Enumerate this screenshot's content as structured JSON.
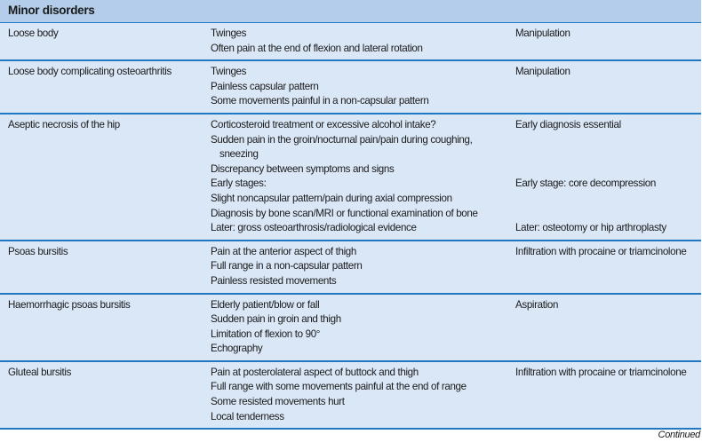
{
  "header": {
    "title": "Minor disorders"
  },
  "rows": [
    {
      "condition": "Loose body",
      "findings": [
        "Twinges",
        "Often pain at the end of flexion and lateral rotation"
      ],
      "treatment": [
        "Manipulation",
        ""
      ]
    },
    {
      "condition": "Loose body complicating osteoarthritis",
      "findings": [
        "Twinges",
        "Painless capsular pattern",
        "Some movements painful in a non-capsular pattern"
      ],
      "treatment": [
        "Manipulation",
        "",
        ""
      ]
    },
    {
      "condition": "Aseptic necrosis of the hip",
      "findings": [
        "Corticosteroid treatment or excessive alcohol intake?",
        "Sudden pain in the groin/nocturnal pain/pain during coughing,",
        "sneezing",
        "Discrepancy between symptoms and signs",
        "Early stages:",
        "Slight noncapsular pattern/pain during axial compression",
        "Diagnosis by bone scan/MRI or functional examination of bone",
        "Later: gross osteoarthrosis/radiological evidence"
      ],
      "treatment": [
        "Early diagnosis essential",
        "",
        "",
        "",
        "Early stage: core decompression",
        "",
        "",
        "Later: osteotomy or hip arthroplasty"
      ]
    },
    {
      "condition": "Psoas bursitis",
      "findings": [
        "Pain at the anterior aspect of thigh",
        "Full range in a non-capsular pattern",
        "Painless resisted movements"
      ],
      "treatment": [
        "Infiltration with procaine or triamcinolone",
        "",
        ""
      ]
    },
    {
      "condition": "Haemorrhagic psoas bursitis",
      "findings": [
        "Elderly patient/blow or fall",
        "Sudden pain in groin and thigh",
        "Limitation of flexion to 90°",
        "Echography"
      ],
      "treatment": [
        "Aspiration",
        "",
        "",
        ""
      ]
    },
    {
      "condition": "Gluteal bursitis",
      "findings": [
        "Pain at posterolateral aspect of buttock and thigh",
        "Full range with some movements painful at the end of range",
        "Some resisted movements hurt",
        "Local tenderness"
      ],
      "treatment": [
        "Infiltration with procaine or triamcinolone",
        "",
        "",
        ""
      ]
    }
  ],
  "footer": {
    "continued": "Continued"
  }
}
